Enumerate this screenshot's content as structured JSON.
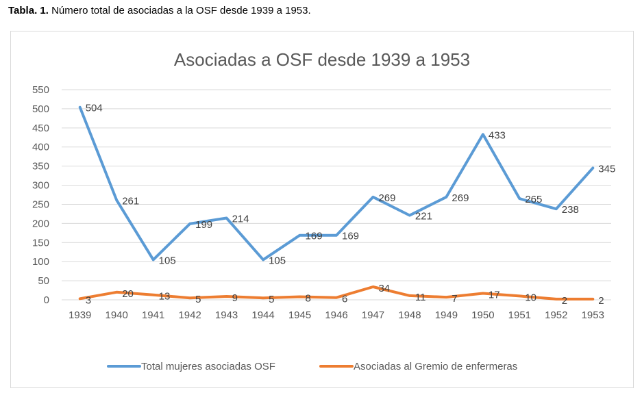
{
  "caption": {
    "bold": "Tabla. 1.",
    "text": " Número total de asociadas a la OSF desde 1939 a 1953."
  },
  "chart_data": {
    "type": "line",
    "title": "Asociadas a OSF desde 1939 a 1953",
    "xlabel": "",
    "ylabel": "",
    "categories": [
      "1939",
      "1940",
      "1941",
      "1942",
      "1943",
      "1944",
      "1945",
      "1946",
      "1947",
      "1948",
      "1949",
      "1950",
      "1951",
      "1952",
      "1953"
    ],
    "ylim": [
      0,
      550
    ],
    "yticks": [
      "0",
      "50",
      "100",
      "150",
      "200",
      "250",
      "300",
      "350",
      "400",
      "450",
      "500",
      "550"
    ],
    "grid": true,
    "legend_position": "bottom",
    "series": [
      {
        "name": "Total mujeres asociadas OSF",
        "color": "#5b9bd5",
        "values": [
          504,
          261,
          105,
          199,
          214,
          105,
          169,
          169,
          269,
          221,
          269,
          433,
          265,
          238,
          345
        ]
      },
      {
        "name": "Asociadas al Gremio de enfermeras",
        "color": "#ed7d31",
        "values": [
          3,
          20,
          13,
          5,
          9,
          5,
          8,
          6,
          34,
          11,
          7,
          17,
          10,
          2,
          2
        ]
      }
    ]
  }
}
